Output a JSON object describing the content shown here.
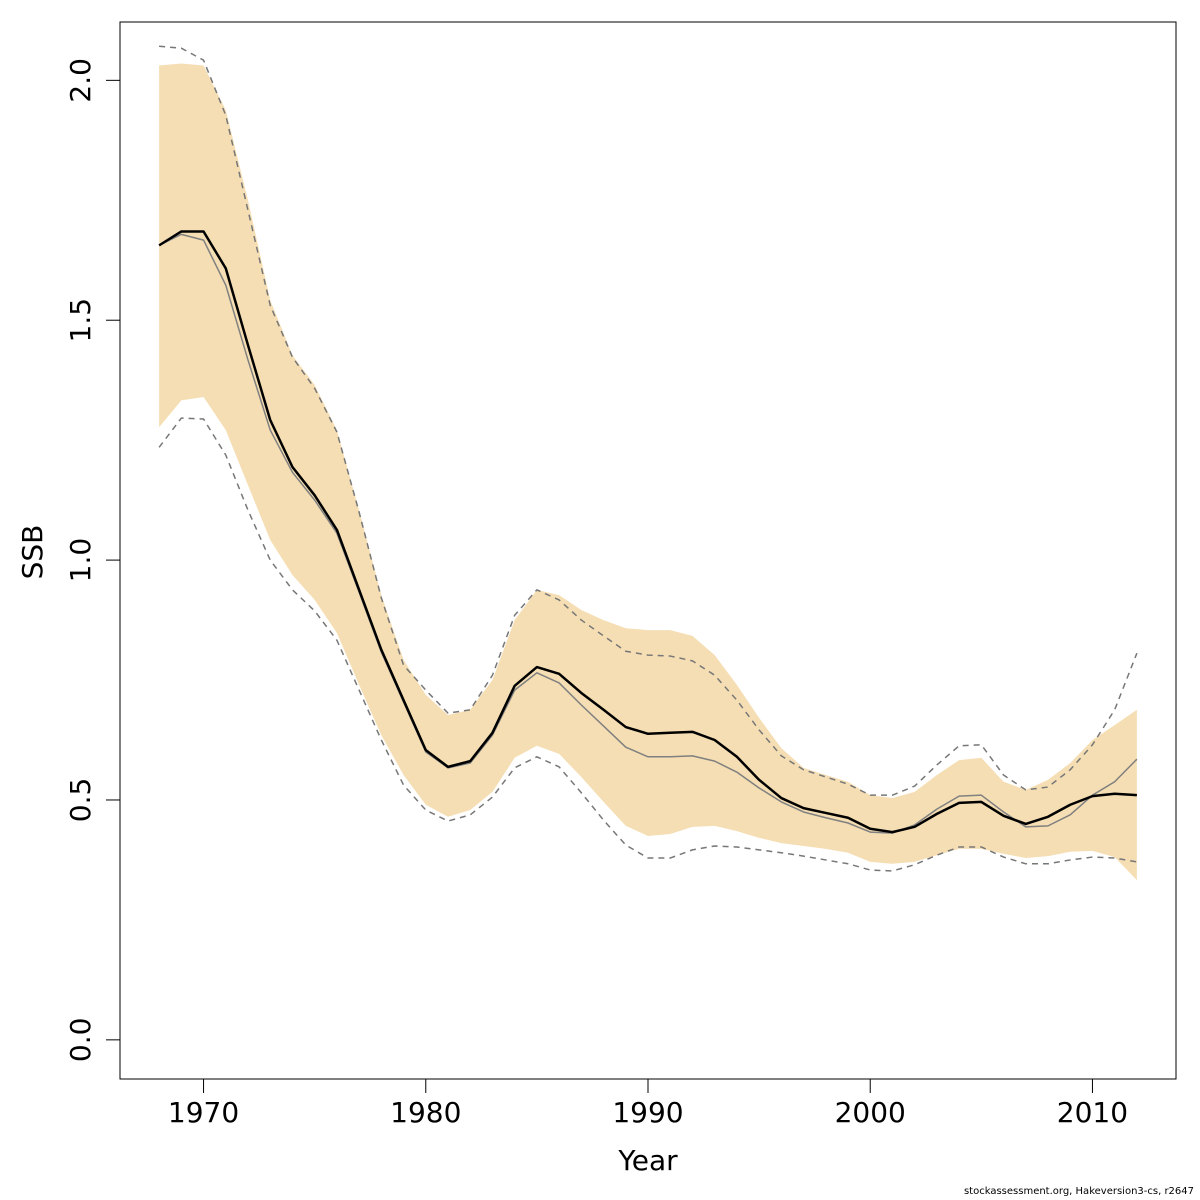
{
  "chart_data": {
    "type": "line",
    "x_label": "Year",
    "y_label": "SSB",
    "footnote": "stockassessment.org, Hakeversion3-cs, r2647",
    "x": [
      1968,
      1969,
      1970,
      1971,
      1972,
      1973,
      1974,
      1975,
      1976,
      1977,
      1978,
      1979,
      1980,
      1981,
      1982,
      1983,
      1984,
      1985,
      1986,
      1987,
      1988,
      1989,
      1990,
      1991,
      1992,
      1993,
      1994,
      1995,
      1996,
      1997,
      1998,
      1999,
      2000,
      2001,
      2002,
      2003,
      2004,
      2005,
      2006,
      2007,
      2008,
      2009,
      2010,
      2011,
      2012
    ],
    "band": {
      "color": "#f5deb3",
      "upper": [
        2.031,
        2.035,
        2.031,
        1.938,
        1.75,
        1.542,
        1.427,
        1.365,
        1.271,
        1.104,
        0.927,
        0.792,
        0.719,
        0.677,
        0.688,
        0.75,
        0.875,
        0.938,
        0.927,
        0.896,
        0.875,
        0.858,
        0.854,
        0.854,
        0.842,
        0.802,
        0.74,
        0.671,
        0.608,
        0.567,
        0.552,
        0.538,
        0.51,
        0.504,
        0.517,
        0.552,
        0.583,
        0.588,
        0.538,
        0.521,
        0.542,
        0.577,
        0.625,
        0.656,
        0.688
      ],
      "lower": [
        1.277,
        1.333,
        1.34,
        1.271,
        1.156,
        1.042,
        0.969,
        0.917,
        0.848,
        0.74,
        0.635,
        0.552,
        0.49,
        0.465,
        0.479,
        0.517,
        0.588,
        0.613,
        0.596,
        0.548,
        0.496,
        0.446,
        0.425,
        0.429,
        0.444,
        0.446,
        0.435,
        0.421,
        0.41,
        0.404,
        0.398,
        0.39,
        0.371,
        0.367,
        0.371,
        0.385,
        0.398,
        0.398,
        0.388,
        0.379,
        0.383,
        0.392,
        0.394,
        0.381,
        0.333
      ]
    },
    "series": [
      {
        "color": "#777777",
        "style": "dashed",
        "width": 1.5,
        "values": [
          2.071,
          2.067,
          2.042,
          1.927,
          1.729,
          1.531,
          1.423,
          1.358,
          1.267,
          1.1,
          0.921,
          0.781,
          0.729,
          0.681,
          0.688,
          0.76,
          0.885,
          0.938,
          0.917,
          0.875,
          0.842,
          0.81,
          0.802,
          0.8,
          0.79,
          0.76,
          0.708,
          0.646,
          0.592,
          0.563,
          0.548,
          0.533,
          0.51,
          0.51,
          0.529,
          0.573,
          0.613,
          0.615,
          0.552,
          0.521,
          0.527,
          0.563,
          0.615,
          0.688,
          0.806
        ]
      },
      {
        "color": "#777777",
        "style": "dashed",
        "width": 1.5,
        "values": [
          1.235,
          1.296,
          1.294,
          1.219,
          1.104,
          1.0,
          0.938,
          0.894,
          0.833,
          0.729,
          0.625,
          0.531,
          0.479,
          0.456,
          0.469,
          0.506,
          0.567,
          0.59,
          0.569,
          0.515,
          0.458,
          0.406,
          0.379,
          0.379,
          0.396,
          0.404,
          0.402,
          0.396,
          0.39,
          0.383,
          0.375,
          0.367,
          0.354,
          0.352,
          0.365,
          0.385,
          0.402,
          0.402,
          0.381,
          0.367,
          0.367,
          0.375,
          0.381,
          0.379,
          0.371
        ]
      },
      {
        "color": "#808080",
        "style": "solid",
        "width": 1.5,
        "values": [
          1.656,
          1.679,
          1.667,
          1.573,
          1.417,
          1.271,
          1.183,
          1.125,
          1.056,
          0.933,
          0.808,
          0.704,
          0.6,
          0.567,
          0.577,
          0.635,
          0.729,
          0.765,
          0.744,
          0.698,
          0.654,
          0.61,
          0.59,
          0.59,
          0.592,
          0.581,
          0.558,
          0.525,
          0.496,
          0.475,
          0.463,
          0.452,
          0.433,
          0.431,
          0.448,
          0.481,
          0.508,
          0.51,
          0.475,
          0.444,
          0.446,
          0.469,
          0.51,
          0.538,
          0.585
        ]
      },
      {
        "color": "#000000",
        "style": "solid",
        "width": 2.5,
        "values": [
          1.656,
          1.685,
          1.685,
          1.608,
          1.448,
          1.292,
          1.194,
          1.135,
          1.063,
          0.938,
          0.813,
          0.708,
          0.604,
          0.569,
          0.581,
          0.64,
          0.738,
          0.777,
          0.763,
          0.723,
          0.688,
          0.652,
          0.638,
          0.64,
          0.642,
          0.625,
          0.59,
          0.542,
          0.504,
          0.483,
          0.473,
          0.463,
          0.44,
          0.433,
          0.444,
          0.471,
          0.494,
          0.496,
          0.467,
          0.45,
          0.465,
          0.49,
          0.508,
          0.513,
          0.51
        ]
      }
    ],
    "xlim": [
      1966.24,
      2013.76
    ],
    "xticks": [
      1970,
      1980,
      1990,
      2000,
      2010
    ],
    "ylim": [
      -0.0816,
      2.1216
    ],
    "yticks": [
      {
        "value": 0,
        "label": "0.0"
      },
      0.5,
      {
        "value": 1,
        "label": "1.0"
      },
      1.5,
      {
        "value": 2,
        "label": "2.0"
      }
    ]
  }
}
